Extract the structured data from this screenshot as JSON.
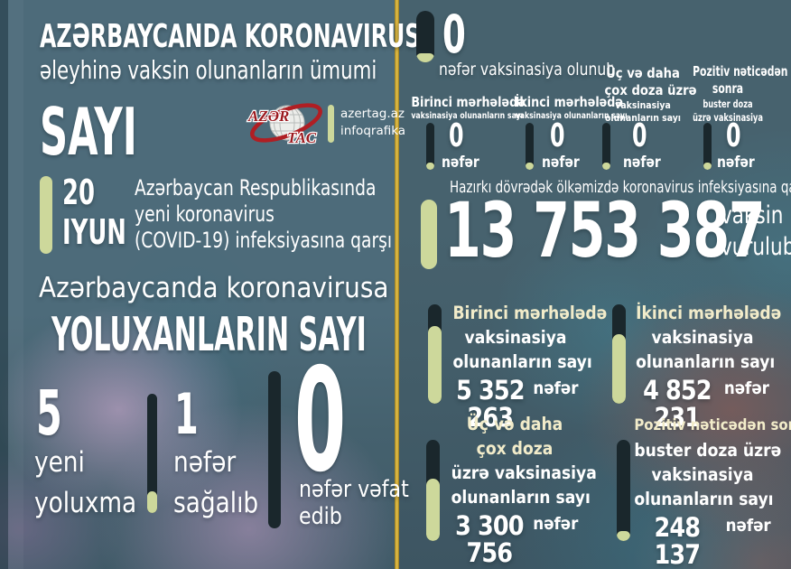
{
  "colors": {
    "background_left": "#4d6b7a",
    "background_right": "#47626e",
    "accent_green": "#cdd89b",
    "accent_gold": "#d9b542",
    "dark_bar": "#1a272c",
    "cream_text": "#f2ecca",
    "white_text": "#ffffff",
    "logo_red": "#9c1a1f"
  },
  "left_panel": {
    "title_line1": "AZƏRBAYCANDA KORONAVIRUS",
    "title_line2": "əleyhinə vaksin olunanların ümumi",
    "title_line3": "SAYI",
    "logo": {
      "word_top": "AZƏR",
      "word_bottom": "TAC",
      "site": "azertag.az",
      "site_caption": "infoqrafika"
    },
    "date": {
      "day": "20",
      "month": "IYUN"
    },
    "context_line1": "Azərbaycan Respublikasında",
    "context_line2": "yeni koronavirus",
    "context_line3": "(COVID-19) infeksiyasına qarşı",
    "infected_line1": "Azərbaycanda koronavirusa",
    "infected_line2": "YOLUXANLARIN SAYI",
    "daily_new": {
      "value": "5",
      "label_line1": "yeni",
      "label_line2": "yoluxma"
    },
    "daily_recovered": {
      "value": "1",
      "label_line1": "nəfər",
      "label_line2": "sağalıb"
    },
    "daily_deaths": {
      "value": "0",
      "label_line1": "nəfər vəfat",
      "label_line2": "edib"
    }
  },
  "right_panel": {
    "today_total": {
      "value": "0",
      "label": "nəfər vaksinasiya olunub"
    },
    "today_breakdown": [
      {
        "title_line1": "Birinci mərhələdə",
        "subtitle_line1": "vaksinasiya olunanların sayı",
        "value": "0",
        "unit": "nəfər"
      },
      {
        "title_line1": "İkinci mərhələdə",
        "subtitle_line1": "vaksinasiya olunanların sayı",
        "value": "0",
        "unit": "nəfər"
      },
      {
        "title_line1": "Üç və daha",
        "title_line2": "çox doza üzrə",
        "subtitle_line1": "vaksinasiya",
        "subtitle_line2": "olunanların sayı",
        "value": "0",
        "unit": "nəfər"
      },
      {
        "title_line1": "Pozitiv nəticədən",
        "title_line2": "sonra",
        "subtitle_line1": "buster doza",
        "subtitle_line2": "üzrə vaksinasiya",
        "value": "0",
        "unit": "nəfər"
      }
    ],
    "total": {
      "heading": "Hazırkı dövrədək ölkəmizdə koronavirus infeksiyasına qarşı",
      "value": "13 753 387",
      "suffix_line1": "vaksin",
      "suffix_line2": "vurulub"
    },
    "phases": [
      {
        "title_line1": "Birinci mərhələdə",
        "body_line1": "vaksinasiya",
        "body_line2": "olunanların sayı",
        "value": "5 352 263",
        "unit": "nəfər",
        "fill": 78
      },
      {
        "title_line1": "İkinci mərhələdə",
        "body_line1": "vaksinasiya",
        "body_line2": "olunanların sayı",
        "value": "4 852 231",
        "unit": "nəfər",
        "fill": 70
      },
      {
        "title_line1": "Üç və daha",
        "title_line2": "çox doza",
        "body_line1": "üzrə vaksinasiya",
        "body_line2": "olunanların sayı",
        "value": "3 300 756",
        "unit": "nəfər",
        "fill": 62
      },
      {
        "title_line1": "Pozitiv nəticədən sonra",
        "body_line1": "buster doza üzrə",
        "body_line2": "vaksinasiya",
        "body_line3": "olunanların sayı",
        "value": "248 137",
        "unit": "nəfər",
        "fill": 10
      }
    ]
  },
  "chart_data": {
    "type": "table",
    "title": "Azərbaycanda koronavirus əleyhinə vaksin olunanların ümumi sayı — 20 iyun",
    "rows": [
      {
        "label": "Yeni yoluxma (bu gün)",
        "value": 5
      },
      {
        "label": "Sağalıb (bu gün)",
        "value": 1
      },
      {
        "label": "Vəfat edib (bu gün)",
        "value": 0
      },
      {
        "label": "Bu gün vaksinasiya olunub",
        "value": 0
      },
      {
        "label": "Bu gün birinci mərhələdə vaksinasiya olunanların sayı",
        "value": 0
      },
      {
        "label": "Bu gün ikinci mərhələdə vaksinasiya olunanların sayı",
        "value": 0
      },
      {
        "label": "Bu gün üç və daha çox doza üzrə vaksinasiya olunanların sayı",
        "value": 0
      },
      {
        "label": "Bu gün pozitiv nəticədən sonra buster doza üzrə vaksinasiya",
        "value": 0
      },
      {
        "label": "Ümumilikdə vaksin vurulub",
        "value": 13753387
      },
      {
        "label": "Birinci mərhələdə vaksinasiya olunanların sayı",
        "value": 5352263
      },
      {
        "label": "İkinci mərhələdə vaksinasiya olunanların sayı",
        "value": 4852231
      },
      {
        "label": "Üç və daha çox doza üzrə vaksinasiya olunanların sayı",
        "value": 3300756
      },
      {
        "label": "Pozitiv nəticədən sonra buster doza üzrə vaksinasiya olunanların sayı",
        "value": 248137
      }
    ]
  }
}
